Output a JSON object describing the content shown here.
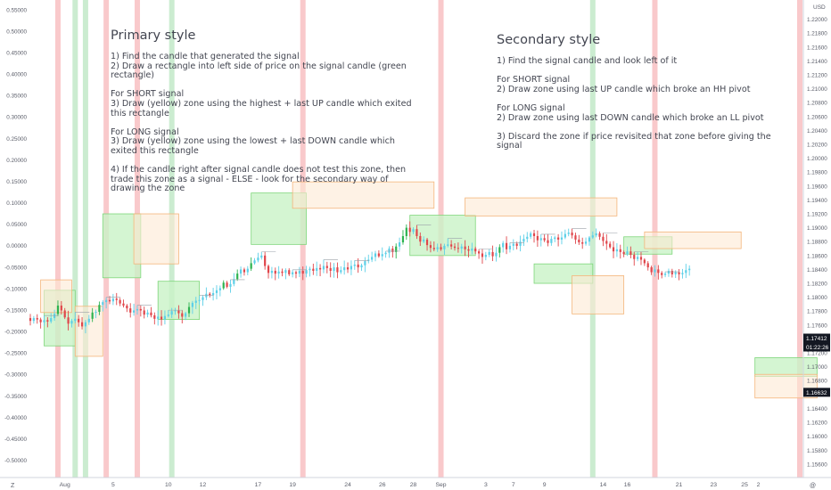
{
  "chart_data": {
    "type": "candlestick",
    "left_axis": {
      "ticks": [
        "0.55000",
        "0.50000",
        "0.45000",
        "0.40000",
        "0.35000",
        "0.30000",
        "0.25000",
        "0.20000",
        "0.15000",
        "0.10000",
        "0.05000",
        "0.00000",
        "-0.05000",
        "-0.10000",
        "-0.15000",
        "-0.20000",
        "-0.25000",
        "-0.30000",
        "-0.35000",
        "-0.40000",
        "-0.45000",
        "-0.50000"
      ],
      "range": [
        -0.53,
        0.56
      ]
    },
    "right_axis": {
      "currency": "USD",
      "ticks": [
        "1.22000",
        "1.21800",
        "1.21600",
        "1.21400",
        "1.21200",
        "1.21000",
        "1.20800",
        "1.20600",
        "1.20400",
        "1.20200",
        "1.20000",
        "1.19800",
        "1.19600",
        "1.19400",
        "1.19200",
        "1.19000",
        "1.18800",
        "1.18600",
        "1.18400",
        "1.18200",
        "1.18000",
        "1.17800",
        "1.17600",
        "1.17200",
        "1.17000",
        "1.16800",
        "1.16400",
        "1.16200",
        "1.16000",
        "1.15800",
        "1.15600"
      ],
      "range": [
        1.1547,
        1.222
      ],
      "last_price": "1.17412",
      "countdown": "01:22:26",
      "current_price": "1.16632"
    },
    "x_axis": {
      "ticks": [
        {
          "label": "Aug",
          "bar": 10
        },
        {
          "label": "5",
          "bar": 24
        },
        {
          "label": "10",
          "bar": 40
        },
        {
          "label": "12",
          "bar": 50
        },
        {
          "label": "17",
          "bar": 66
        },
        {
          "label": "19",
          "bar": 76
        },
        {
          "label": "24",
          "bar": 92
        },
        {
          "label": "26",
          "bar": 102
        },
        {
          "label": "28",
          "bar": 111
        },
        {
          "label": "Sep",
          "bar": 119
        },
        {
          "label": "3",
          "bar": 132
        },
        {
          "label": "7",
          "bar": 140
        },
        {
          "label": "9",
          "bar": 149
        },
        {
          "label": "14",
          "bar": 166
        },
        {
          "label": "16",
          "bar": 173
        },
        {
          "label": "21",
          "bar": 188
        },
        {
          "label": "23",
          "bar": 198
        },
        {
          "label": "25",
          "bar": 207
        },
        {
          "label": "2",
          "bar": 211
        }
      ]
    },
    "start_price": 1.177,
    "moves": [
      -4,
      4,
      -2,
      -4,
      3,
      -2,
      5,
      6,
      12,
      -7,
      -10,
      -9,
      4,
      3,
      -5,
      -6,
      6,
      5,
      9,
      1,
      10,
      4,
      3,
      -2,
      4,
      -2,
      -5,
      -3,
      -4,
      -6,
      3,
      2,
      -2,
      -6,
      3,
      -4,
      -5,
      3,
      -4,
      5,
      2,
      5,
      1,
      -4,
      -5,
      5,
      9,
      6,
      3,
      1,
      4,
      5,
      -2,
      3,
      4,
      3,
      8,
      -6,
      4,
      7,
      8,
      6,
      -4,
      5,
      8,
      4,
      4,
      3,
      -15,
      -10,
      3,
      -4,
      3,
      -2,
      4,
      -6,
      3,
      -2,
      4,
      -4,
      5,
      2,
      -3,
      4,
      -2,
      5,
      -3,
      -4,
      5,
      -7,
      3,
      4,
      -3,
      5,
      2,
      -4,
      3,
      6,
      2,
      4,
      5,
      -4,
      3,
      2,
      6,
      -5,
      8,
      6,
      9,
      12,
      -6,
      4,
      -10,
      -8,
      3,
      -8,
      -4,
      -2,
      3,
      -3,
      5,
      2,
      -3,
      -2,
      -1,
      3,
      -4,
      -2,
      3,
      -4,
      -3,
      -5,
      3,
      4,
      -6,
      5,
      8,
      6,
      -9,
      5,
      3,
      -3,
      6,
      4,
      3,
      5,
      -4,
      -6,
      3,
      -3,
      -4,
      6,
      2,
      -3,
      3,
      5,
      2,
      -4,
      -6,
      -4,
      -2,
      3,
      6,
      3,
      3,
      -5,
      -6,
      -4,
      -5,
      -6,
      3,
      -4,
      -3,
      4,
      -5,
      -6,
      3,
      -4,
      -5,
      -6,
      -7,
      4,
      -5,
      -3,
      2,
      4,
      -5,
      3,
      -3,
      2,
      4,
      2
    ],
    "shaded_bars": [
      {
        "bar": 8,
        "color": "red"
      },
      {
        "bar": 13,
        "color": "green"
      },
      {
        "bar": 16,
        "color": "green"
      },
      {
        "bar": 22,
        "color": "red"
      },
      {
        "bar": 31,
        "color": "red"
      },
      {
        "bar": 41,
        "color": "green"
      },
      {
        "bar": 79,
        "color": "red"
      },
      {
        "bar": 119,
        "color": "red"
      },
      {
        "bar": 163,
        "color": "green"
      },
      {
        "bar": 181,
        "color": "red"
      },
      {
        "bar": 223,
        "color": "red"
      }
    ],
    "zones": [
      {
        "color": "green",
        "bar_start": 4,
        "bar_end": 13,
        "price_top": 1.181,
        "price_bottom": 1.173
      },
      {
        "color": "orange",
        "bar_start": 3,
        "bar_end": 12,
        "price_top": 1.1825,
        "price_bottom": 1.1778
      },
      {
        "color": "orange",
        "bar_start": 13,
        "bar_end": 21,
        "price_top": 1.1787,
        "price_bottom": 1.1715
      },
      {
        "color": "green",
        "bar_start": 21,
        "bar_end": 32,
        "price_top": 1.192,
        "price_bottom": 1.1828
      },
      {
        "color": "orange",
        "bar_start": 30,
        "bar_end": 43,
        "price_top": 1.192,
        "price_bottom": 1.1848
      },
      {
        "color": "green",
        "bar_start": 37,
        "bar_end": 49,
        "price_top": 1.1823,
        "price_bottom": 1.1768
      },
      {
        "color": "green",
        "bar_start": 64,
        "bar_end": 80,
        "price_top": 1.195,
        "price_bottom": 1.1876
      },
      {
        "color": "orange",
        "bar_start": 76,
        "bar_end": 117,
        "price_top": 1.1966,
        "price_bottom": 1.1928
      },
      {
        "color": "green",
        "bar_start": 110,
        "bar_end": 129,
        "price_top": 1.1918,
        "price_bottom": 1.186
      },
      {
        "color": "orange",
        "bar_start": 126,
        "bar_end": 170,
        "price_top": 1.1943,
        "price_bottom": 1.1917
      },
      {
        "color": "green",
        "bar_start": 146,
        "bar_end": 163,
        "price_top": 1.1848,
        "price_bottom": 1.182
      },
      {
        "color": "orange",
        "bar_start": 157,
        "bar_end": 172,
        "price_top": 1.1831,
        "price_bottom": 1.1776
      },
      {
        "color": "green",
        "bar_start": 172,
        "bar_end": 186,
        "price_top": 1.1887,
        "price_bottom": 1.1862
      },
      {
        "color": "orange",
        "bar_start": 178,
        "bar_end": 206,
        "price_top": 1.1894,
        "price_bottom": 1.187
      },
      {
        "color": "green",
        "bar_start": 210,
        "bar_end": 228,
        "price_top": 1.1713,
        "price_bottom": 1.1686
      },
      {
        "color": "orange",
        "bar_start": 210,
        "bar_end": 228,
        "price_top": 1.1689,
        "price_bottom": 1.1655
      }
    ],
    "annotations": {
      "primary": {
        "title": "Primary style",
        "steps": [
          "1) Find the candle that generated the signal\n2) Draw a rectangle into left side of price on the signal candle (green rectangle)",
          "For SHORT signal\n3) Draw (yellow) zone using the highest + last UP candle which exited this rectangle",
          "For LONG signal\n3) Draw (yellow) zone using the lowest + last DOWN candle which exited this rectangle",
          "4) If the candle right after signal candle does not test this zone, then trade this zone as a signal - ELSE - look for the secondary way of drawing the zone"
        ]
      },
      "secondary": {
        "title": "Secondary style",
        "steps": [
          "1) Find the signal candle and look left of it",
          "For SHORT signal\n2) Draw zone using last UP candle which broke an HH pivot",
          "For LONG signal\n2) Draw zone using last DOWN candle which broke an LL pivot",
          "3) Discard the zone if price revisited that zone before giving the signal"
        ]
      }
    },
    "colors": {
      "up": "#5dd0e8",
      "down": "#e0464b",
      "strong_up": "#2db350",
      "zone_green_fill": "#c9f2c7",
      "zone_green_stroke": "#7ed67a",
      "zone_orange_fill": "#fde9d3",
      "zone_orange_stroke": "#f4b57a",
      "shade_red": "#f7b7b9",
      "shade_green": "#b9e6c0",
      "axis_text": "#5b5e6a",
      "last_price_tag": "#131722",
      "current_price_tag": "#131722"
    }
  },
  "corner": {
    "left": "Z",
    "right": "@"
  }
}
